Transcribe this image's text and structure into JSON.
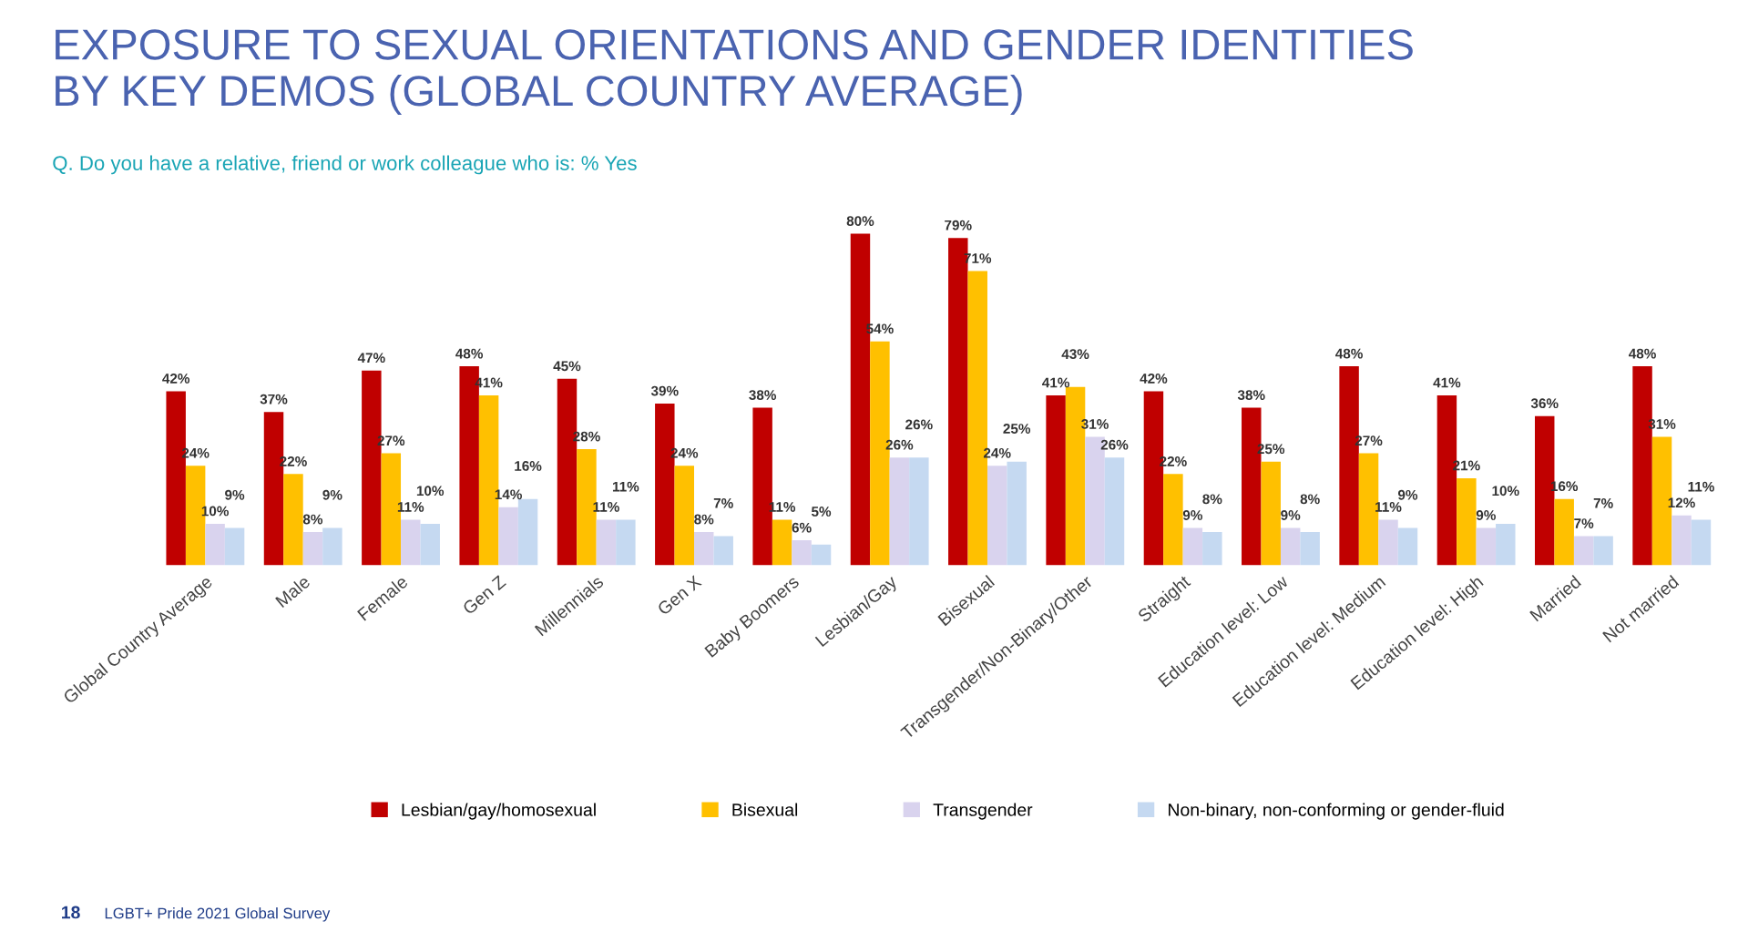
{
  "chart_data": {
    "type": "bar",
    "title": "EXPOSURE TO SEXUAL ORIENTATIONS AND GENDER IDENTITIES\nBY KEY DEMOS (GLOBAL COUNTRY AVERAGE)",
    "subtitle": "Q. Do you have a relative, friend or work colleague who is: % Yes",
    "categories": [
      "Global Country Average",
      "Male",
      "Female",
      "Gen Z",
      "Millennials",
      "Gen X",
      "Baby Boomers",
      "Lesbian/Gay",
      "Bisexual",
      "Transgender/Non-Binary/Other",
      "Straight",
      "Education level: Low",
      "Education level: Medium",
      "Education level: High",
      "Married",
      "Not married"
    ],
    "series": [
      {
        "name": "Lesbian/gay/homosexual",
        "color": "#c00000",
        "values": [
          42,
          37,
          47,
          48,
          45,
          39,
          38,
          80,
          79,
          41,
          42,
          38,
          48,
          41,
          36,
          48
        ],
        "value_labels": [
          "42%",
          "37%",
          "47%",
          "48%",
          "45%",
          "39%",
          "38%",
          "80%",
          "79%",
          "41%",
          "42%",
          "38%",
          "48%",
          "41%",
          "36%",
          "48%"
        ]
      },
      {
        "name": "Bisexual",
        "color": "#ffc000",
        "values": [
          24,
          22,
          27,
          41,
          28,
          24,
          11,
          54,
          71,
          43,
          22,
          25,
          27,
          21,
          16,
          31
        ],
        "value_labels": [
          "24%",
          "22%",
          "27%",
          "41%",
          "28%",
          "24%",
          "11%",
          "54%",
          "71%",
          "43%",
          "22%",
          "25%",
          "27%",
          "21%",
          "16%",
          "31%"
        ]
      },
      {
        "name": "Transgender",
        "color": "#d9d3ee",
        "values": [
          10,
          8,
          11,
          14,
          11,
          8,
          6,
          26,
          24,
          31,
          9,
          9,
          11,
          9,
          7,
          12
        ],
        "value_labels": [
          "10%",
          "8%",
          "11%",
          "14%",
          "11%",
          "8%",
          "6%",
          "26%",
          "24%",
          "31%",
          "9%",
          "9%",
          "11%",
          "9%",
          "7%",
          "12%"
        ]
      },
      {
        "name": "Non-binary, non-conforming or gender-fluid",
        "color": "#c5d9f1",
        "values": [
          9,
          9,
          10,
          16,
          11,
          7,
          5,
          26,
          25,
          26,
          8,
          8,
          9,
          10,
          7,
          11
        ],
        "value_labels": [
          "9%",
          "9%",
          "10%",
          "16%",
          "11%",
          "7%",
          "5%",
          "26%",
          "25%",
          "26%",
          "8%",
          "8%",
          "9%",
          "10%",
          "7%",
          "11%"
        ]
      }
    ],
    "legend": "bottom",
    "grid": false,
    "annotations": [
      "18",
      "LGBT+ Pride 2021 Global Survey"
    ]
  }
}
